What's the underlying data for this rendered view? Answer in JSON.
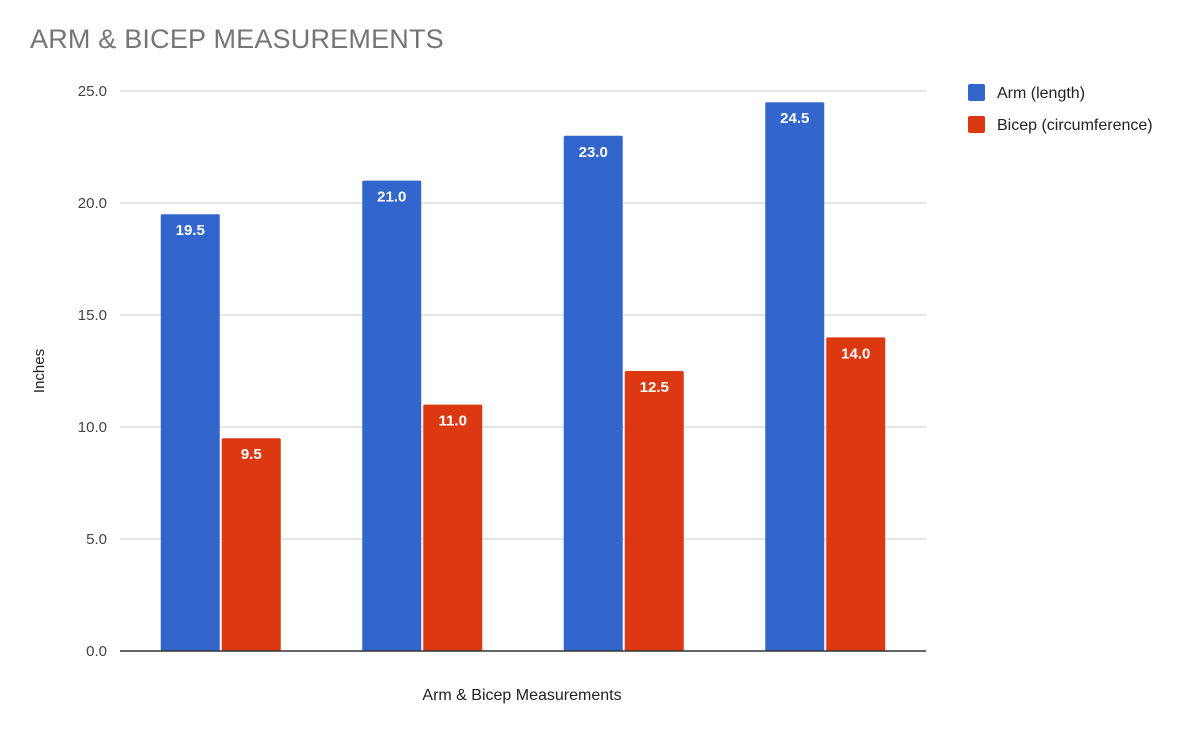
{
  "chart_data": {
    "type": "bar",
    "title": "ARM & BICEP MEASUREMENTS",
    "xlabel": "Arm & Bicep Measurements",
    "ylabel": "Inches",
    "ylim": [
      0,
      25
    ],
    "y_ticks": [
      "0.0",
      "5.0",
      "10.0",
      "15.0",
      "20.0",
      "25.0"
    ],
    "grid": true,
    "legend_position": "right",
    "categories": [
      "",
      "",
      "",
      ""
    ],
    "series": [
      {
        "name": "Arm (length)",
        "color": "#3366cc",
        "values": [
          19.5,
          21.0,
          23.0,
          24.5
        ],
        "labels": [
          "19.5",
          "21.0",
          "23.0",
          "24.5"
        ]
      },
      {
        "name": "Bicep (circumference)",
        "color": "#dc3912",
        "values": [
          9.5,
          11.0,
          12.5,
          14.0
        ],
        "labels": [
          "9.5",
          "11.0",
          "12.5",
          "14.0"
        ]
      }
    ]
  }
}
